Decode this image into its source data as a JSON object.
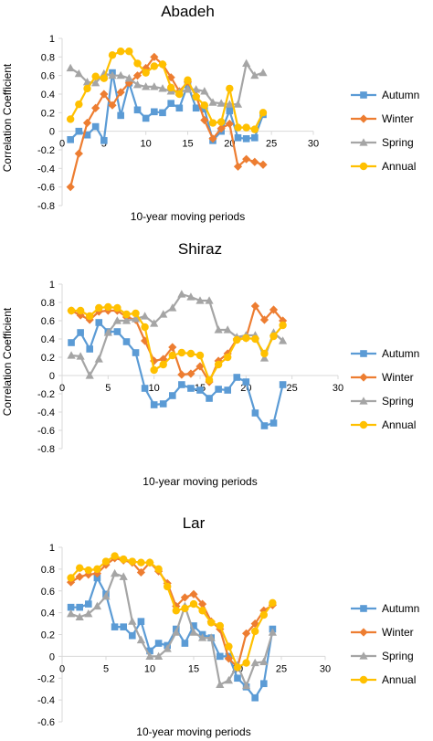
{
  "colors": {
    "Autumn": "#5b9bd5",
    "Winter": "#ed7d31",
    "Spring": "#a5a5a5",
    "Annual": "#ffc000",
    "axis": "#d9d9d9"
  },
  "chart_data": [
    {
      "type": "line",
      "title": "Abadeh",
      "xlabel": "10-year moving periods",
      "ylabel": "Correlation Coefficient",
      "xlim": [
        0,
        30
      ],
      "ylim": [
        -0.8,
        1
      ],
      "xticks": [
        0,
        5,
        10,
        15,
        20,
        25,
        30
      ],
      "yticks": [
        -0.8,
        -0.6,
        -0.4,
        -0.2,
        0,
        0.2,
        0.4,
        0.6,
        0.8,
        1
      ],
      "xtick_labels": [
        "0",
        "5",
        "10",
        "15",
        "20",
        "25",
        "30"
      ],
      "ytick_labels": [
        "-0.8",
        "-0.6",
        "-0.4",
        "-0.2",
        "0",
        "0.2",
        "0.4",
        "0.6",
        "0.8",
        "1"
      ],
      "legend": "right",
      "legend_labels": [
        "Autumn",
        "Winter",
        "Spring",
        "Annual"
      ],
      "x": [
        1,
        2,
        3,
        4,
        5,
        6,
        7,
        8,
        9,
        10,
        11,
        12,
        13,
        14,
        15,
        16,
        17,
        18,
        19,
        20,
        21,
        22,
        23,
        24
      ],
      "series": [
        {
          "name": "Autumn",
          "marker": "square",
          "values": [
            -0.09,
            0.0,
            -0.04,
            0.05,
            -0.1,
            0.63,
            0.17,
            0.52,
            0.23,
            0.14,
            0.21,
            0.2,
            0.3,
            0.25,
            0.5,
            0.25,
            0.24,
            -0.1,
            0.0,
            0.22,
            -0.07,
            -0.08,
            -0.07,
            0.18
          ]
        },
        {
          "name": "Winter",
          "marker": "diamond",
          "values": [
            -0.6,
            -0.24,
            0.09,
            0.25,
            0.4,
            0.28,
            0.42,
            0.52,
            0.6,
            0.68,
            0.8,
            0.72,
            0.58,
            0.43,
            0.53,
            0.38,
            0.12,
            -0.08,
            0.03,
            0.08,
            -0.38,
            -0.3,
            -0.33,
            -0.36
          ]
        },
        {
          "name": "Spring",
          "marker": "triangle",
          "values": [
            0.68,
            0.62,
            0.53,
            0.52,
            0.62,
            0.6,
            0.6,
            0.57,
            0.5,
            0.48,
            0.48,
            0.46,
            0.43,
            0.42,
            0.45,
            0.45,
            0.43,
            0.31,
            0.3,
            0.29,
            0.29,
            0.73,
            0.6,
            0.63
          ]
        },
        {
          "name": "Annual",
          "marker": "circle",
          "values": [
            0.13,
            0.29,
            0.46,
            0.59,
            0.57,
            0.82,
            0.86,
            0.86,
            0.73,
            0.63,
            0.7,
            0.72,
            0.47,
            0.4,
            0.55,
            0.37,
            0.28,
            0.09,
            0.1,
            0.46,
            0.04,
            0.04,
            0.02,
            0.2
          ]
        }
      ]
    },
    {
      "type": "line",
      "title": "Shiraz",
      "xlabel": "10-year moving periods",
      "ylabel": "Correlation Coefficient",
      "xlim": [
        0,
        30
      ],
      "ylim": [
        -0.8,
        1
      ],
      "xticks": [
        0,
        5,
        10,
        15,
        20,
        25,
        30
      ],
      "yticks": [
        -0.8,
        -0.6,
        -0.4,
        -0.2,
        0,
        0.2,
        0.4,
        0.6,
        0.8,
        1
      ],
      "xtick_labels": [
        "0",
        "5",
        "10",
        "15",
        "20",
        "25",
        "30"
      ],
      "ytick_labels": [
        "-0.8",
        "-0.6",
        "-0.4",
        "-0.2",
        "0",
        "0.2",
        "0.4",
        "0.6",
        "0.8",
        "1"
      ],
      "legend": "right",
      "legend_labels": [
        "Autumn",
        "Winter",
        "Spring",
        "Annual"
      ],
      "x": [
        1,
        2,
        3,
        4,
        5,
        6,
        7,
        8,
        9,
        10,
        11,
        12,
        13,
        14,
        15,
        16,
        17,
        18,
        19,
        20,
        21,
        22,
        23,
        24
      ],
      "series": [
        {
          "name": "Autumn",
          "marker": "square",
          "values": [
            0.36,
            0.47,
            0.29,
            0.58,
            0.48,
            0.48,
            0.37,
            0.25,
            -0.14,
            -0.32,
            -0.31,
            -0.22,
            -0.1,
            -0.14,
            -0.16,
            -0.25,
            -0.15,
            -0.16,
            -0.02,
            -0.07,
            -0.41,
            -0.55,
            -0.52,
            -0.1
          ]
        },
        {
          "name": "Winter",
          "marker": "diamond",
          "values": [
            0.71,
            0.66,
            0.61,
            0.7,
            0.71,
            0.71,
            0.64,
            0.61,
            0.38,
            0.16,
            0.18,
            0.31,
            0.01,
            0.02,
            0.1,
            -0.07,
            0.16,
            0.24,
            0.4,
            0.41,
            0.76,
            0.61,
            0.72,
            0.6
          ]
        },
        {
          "name": "Spring",
          "marker": "triangle",
          "values": [
            0.22,
            0.21,
            0.0,
            0.18,
            0.47,
            0.6,
            0.6,
            0.62,
            0.65,
            0.57,
            0.67,
            0.74,
            0.89,
            0.86,
            0.82,
            0.82,
            0.5,
            0.5,
            0.42,
            0.44,
            0.44,
            0.19,
            0.47,
            0.38
          ]
        },
        {
          "name": "Annual",
          "marker": "circle",
          "values": [
            0.71,
            0.71,
            0.65,
            0.74,
            0.75,
            0.74,
            0.67,
            0.68,
            0.53,
            0.06,
            0.12,
            0.22,
            0.25,
            0.24,
            0.22,
            -0.05,
            0.12,
            0.2,
            0.39,
            0.41,
            0.4,
            0.24,
            0.43,
            0.55
          ]
        }
      ]
    },
    {
      "type": "line",
      "title": "Lar",
      "xlabel": "10-year moving periods",
      "ylabel": "",
      "xlim": [
        0,
        30
      ],
      "ylim": [
        -0.6,
        1
      ],
      "xticks": [
        0,
        5,
        10,
        15,
        20,
        25,
        30
      ],
      "yticks": [
        -0.6,
        -0.4,
        -0.2,
        0,
        0.2,
        0.4,
        0.6,
        0.8,
        1
      ],
      "xtick_labels": [
        "0",
        "5",
        "10",
        "15",
        "20",
        "25",
        "30"
      ],
      "ytick_labels": [
        "-0.6",
        "-0.4",
        "-0.2",
        "0",
        "0.2",
        "0.4",
        "0.6",
        "0.8",
        "1"
      ],
      "legend": "right",
      "legend_labels": [
        "Autumn",
        "Winter",
        "Spring",
        "Annual"
      ],
      "x": [
        1,
        2,
        3,
        4,
        5,
        6,
        7,
        8,
        9,
        10,
        11,
        12,
        13,
        14,
        15,
        16,
        17,
        18,
        19,
        20,
        21,
        22,
        23,
        24
      ],
      "series": [
        {
          "name": "Autumn",
          "marker": "square",
          "values": [
            0.45,
            0.45,
            0.48,
            0.72,
            0.57,
            0.27,
            0.27,
            0.19,
            0.32,
            0.05,
            0.12,
            0.1,
            0.25,
            0.12,
            0.28,
            0.2,
            0.17,
            0.0,
            0.0,
            -0.2,
            -0.28,
            -0.38,
            -0.25,
            0.25
          ]
        },
        {
          "name": "Winter",
          "marker": "diamond",
          "values": [
            0.68,
            0.73,
            0.75,
            0.76,
            0.84,
            0.9,
            0.88,
            0.86,
            0.77,
            0.86,
            0.78,
            0.67,
            0.46,
            0.54,
            0.57,
            0.48,
            0.32,
            0.25,
            -0.02,
            -0.1,
            0.21,
            0.3,
            0.42,
            0.47
          ]
        },
        {
          "name": "Spring",
          "marker": "triangle",
          "values": [
            0.39,
            0.36,
            0.39,
            0.46,
            0.55,
            0.76,
            0.73,
            0.32,
            0.15,
            0.0,
            0.0,
            0.07,
            0.22,
            0.46,
            0.22,
            0.17,
            0.17,
            -0.26,
            -0.22,
            -0.08,
            -0.27,
            -0.06,
            -0.05,
            0.22
          ]
        },
        {
          "name": "Annual",
          "marker": "circle",
          "values": [
            0.72,
            0.81,
            0.79,
            0.8,
            0.87,
            0.92,
            0.89,
            0.87,
            0.86,
            0.86,
            0.8,
            0.64,
            0.42,
            0.44,
            0.48,
            0.42,
            0.31,
            0.28,
            0.09,
            -0.1,
            -0.06,
            0.23,
            0.38,
            0.49
          ]
        }
      ]
    }
  ]
}
